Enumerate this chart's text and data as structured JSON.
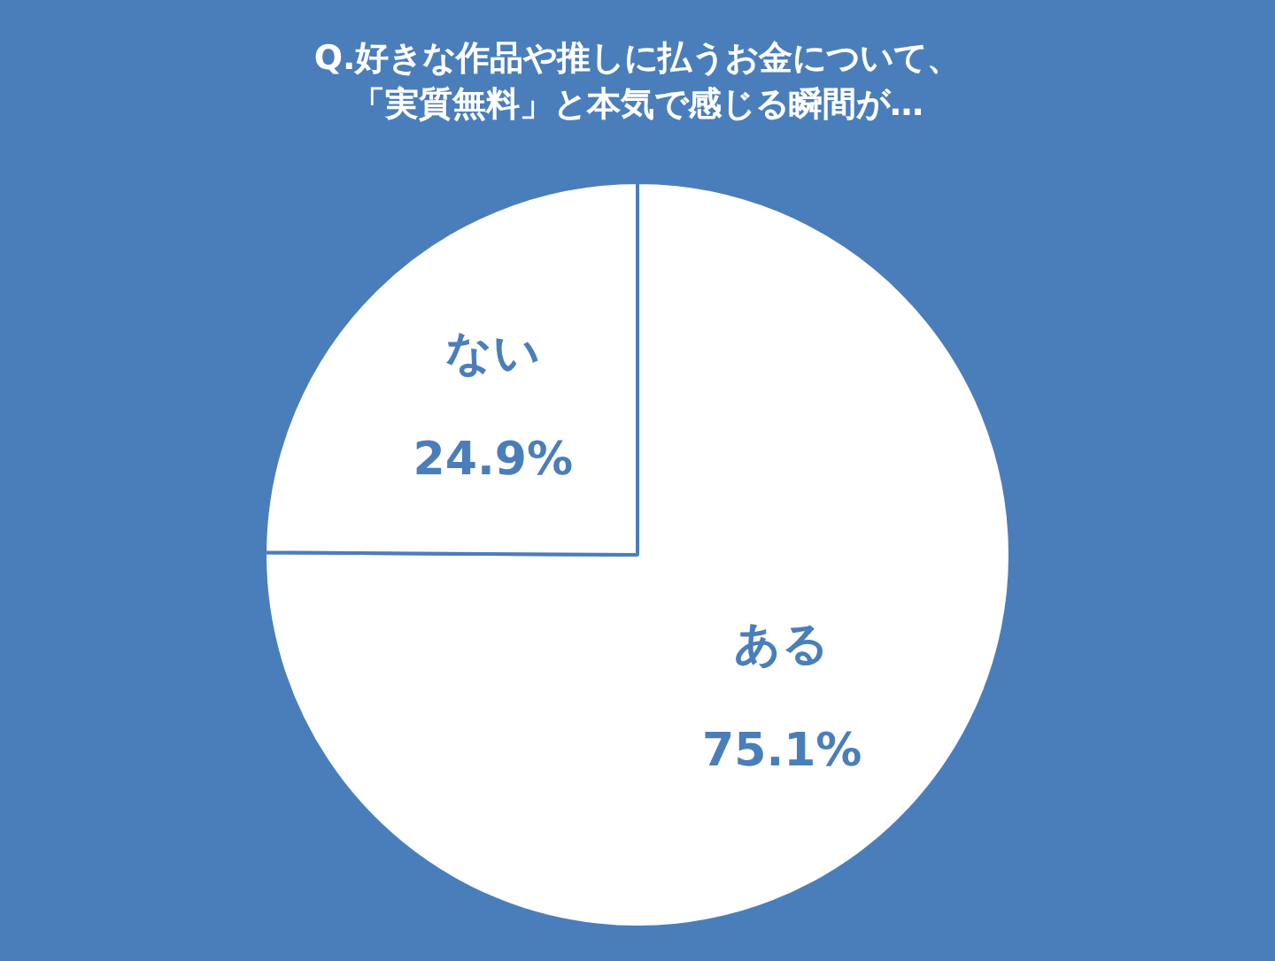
{
  "chart_data": {
    "type": "pie",
    "title": "Q.好きな作品や推しに払うお金について、「実質無料」と本気で感じる瞬間が…",
    "categories": [
      "ある",
      "ない"
    ],
    "values": [
      75.1,
      24.9
    ],
    "colors": [
      "#ffffff",
      "#ffffff"
    ],
    "value_labels": [
      "75.1%",
      "24.9%"
    ],
    "legend": false
  }
}
